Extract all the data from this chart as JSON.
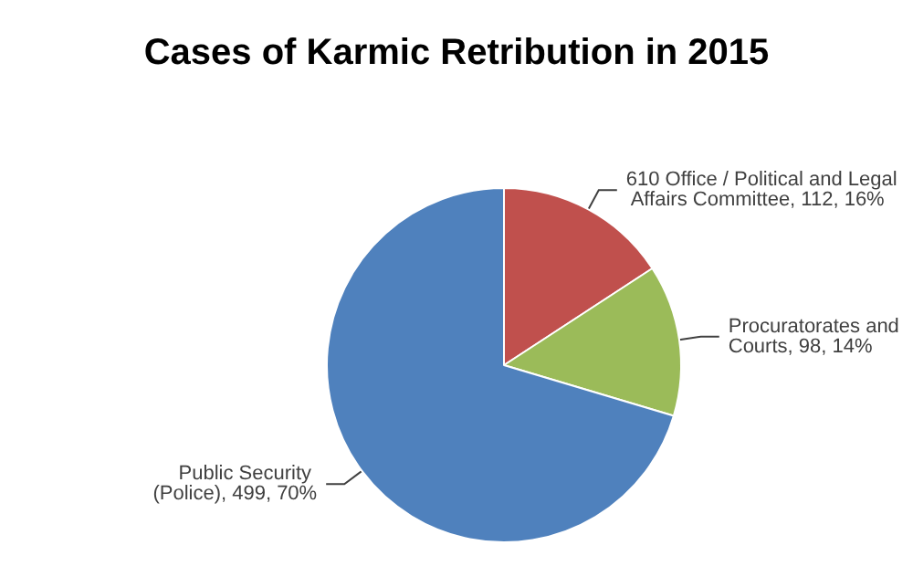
{
  "chart_data": {
    "type": "pie",
    "title": "Cases of Karmic Retribution in 2015",
    "categories": [
      "610 Office / Political and Legal Affairs Committee",
      "Procuratorates and Courts",
      "Public Security (Police)"
    ],
    "values": [
      112,
      98,
      499
    ],
    "value_labels": [
      "112, 16%",
      "98, 14%",
      "499, 70%"
    ],
    "colors": [
      "#c0504d",
      "#9bbb59",
      "#4f81bd"
    ],
    "legend": false
  }
}
